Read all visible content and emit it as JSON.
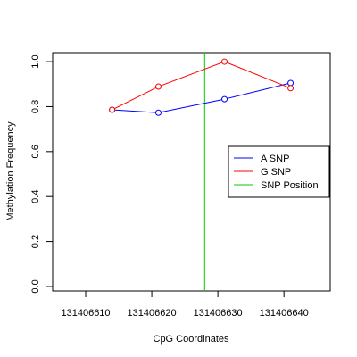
{
  "chart_data": {
    "type": "line",
    "title": "",
    "xlabel": "CpG Coordinates",
    "ylabel": "Methylation Frequency",
    "xlim": [
      131406605,
      131406647
    ],
    "ylim": [
      -0.02,
      1.04
    ],
    "x_ticks": [
      131406610,
      131406620,
      131406630,
      131406640
    ],
    "y_ticks": [
      0.0,
      0.2,
      0.4,
      0.6,
      0.8,
      1.0
    ],
    "x_tick_labels": [
      "131406610",
      "131406620",
      "131406630",
      "131406640"
    ],
    "y_tick_labels": [
      "0.0",
      "0.2",
      "0.4",
      "0.6",
      "0.8",
      "1.0"
    ],
    "grid": false,
    "legend_position": "right",
    "series": [
      {
        "name": "A SNP",
        "color": "#0000ff",
        "x": [
          131406614,
          131406621,
          131406631,
          131406641
        ],
        "y": [
          0.786,
          0.773,
          0.833,
          0.905
        ]
      },
      {
        "name": "G SNP",
        "color": "#ff0000",
        "x": [
          131406614,
          131406621,
          131406631,
          131406641
        ],
        "y": [
          0.786,
          0.889,
          1.0,
          0.882
        ]
      }
    ],
    "snp_position": {
      "name": "SNP Position",
      "color": "#00cc00",
      "x": 131406628
    }
  }
}
